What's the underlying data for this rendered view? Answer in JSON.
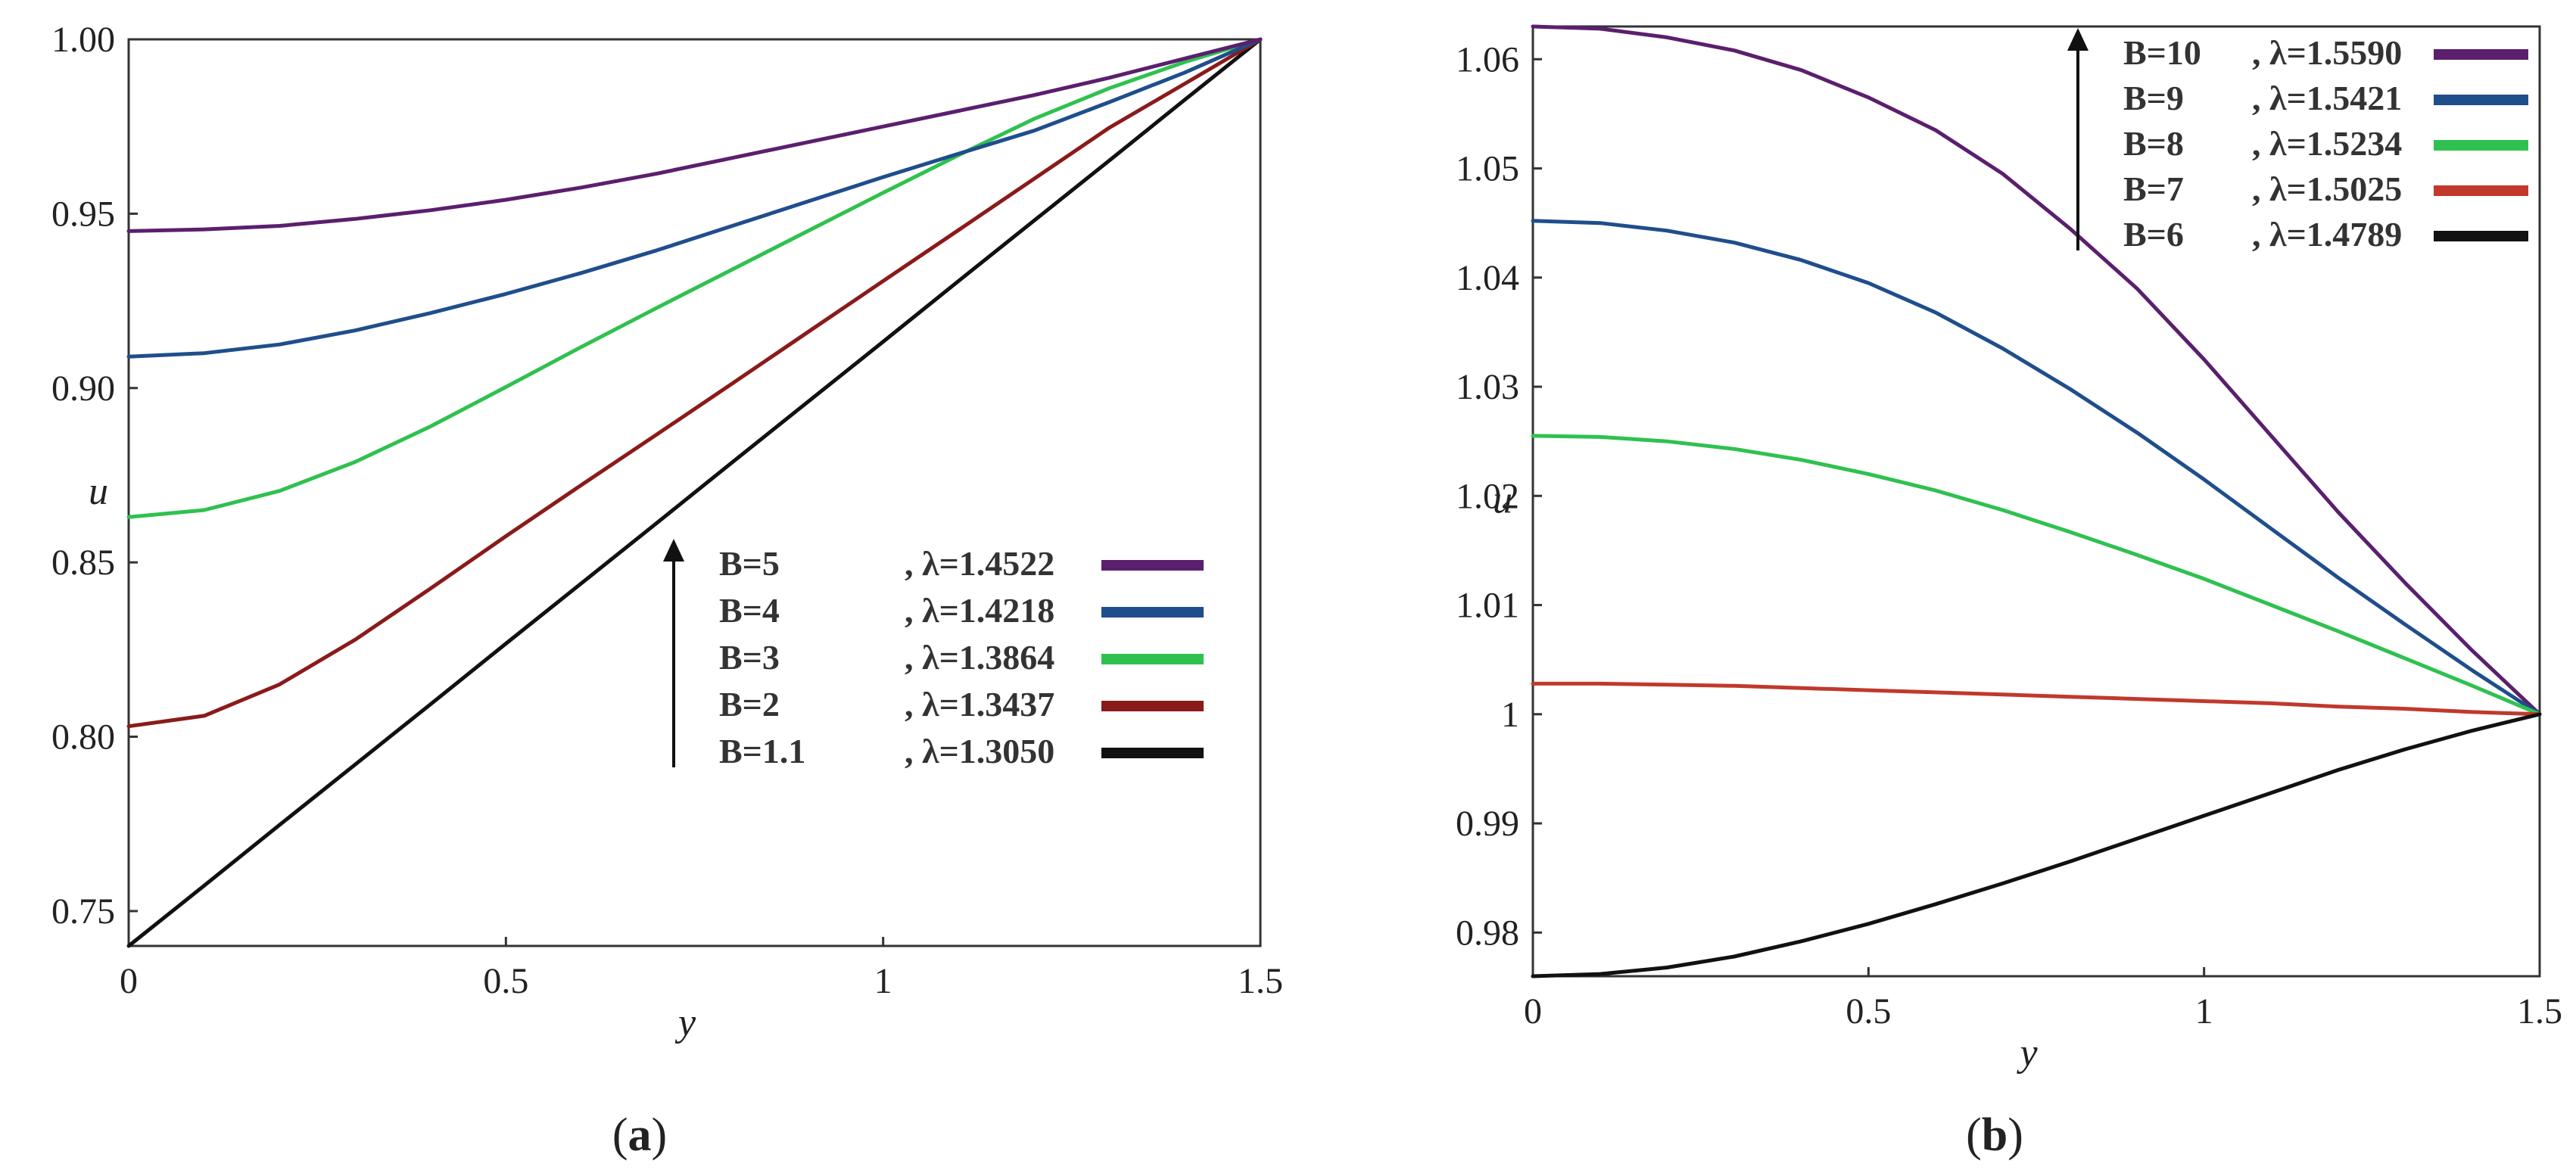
{
  "figure": {
    "panel_labels": [
      {
        "open": "(",
        "letter": "a",
        "close": ")"
      },
      {
        "open": "(",
        "letter": "b",
        "close": ")"
      }
    ]
  },
  "chart_data": [
    {
      "type": "line",
      "xlabel": "y",
      "ylabel": "u",
      "xlim": [
        0,
        1.5
      ],
      "ylim": [
        0.74,
        1.0
      ],
      "xticks": [
        0,
        0.5,
        1,
        1.5
      ],
      "xtick_labels": [
        "0",
        "0.5",
        "1",
        "1.5"
      ],
      "yticks": [
        0.75,
        0.8,
        0.85,
        0.9,
        0.95,
        1.0
      ],
      "ytick_labels": [
        "0.75",
        "0.80",
        "0.85",
        "0.90",
        "0.95",
        "1.00"
      ],
      "legend_position": "bottom-right",
      "legend_arrow": "up",
      "x": [
        0,
        0.1,
        0.2,
        0.3,
        0.4,
        0.5,
        0.6,
        0.7,
        0.8,
        0.9,
        1.0,
        1.1,
        1.2,
        1.3,
        1.4,
        1.5
      ],
      "series": [
        {
          "name": "B=1.1",
          "lambda": ", λ=1.3050",
          "color": "#111111",
          "values": [
            0.74,
            0.7573,
            0.7747,
            0.792,
            0.8093,
            0.8267,
            0.844,
            0.8613,
            0.8787,
            0.896,
            0.9133,
            0.9307,
            0.948,
            0.9653,
            0.9827,
            1.0
          ]
        },
        {
          "name": "B=2",
          "lambda": ", λ=1.3437",
          "color": "#8b1a1a",
          "values": [
            0.803,
            0.806,
            0.815,
            0.8278,
            0.8425,
            0.8575,
            0.8722,
            0.8867,
            0.9013,
            0.916,
            0.9307,
            0.9453,
            0.96,
            0.9747,
            0.9873,
            1.0
          ]
        },
        {
          "name": "B=3",
          "lambda": ", λ=1.3864",
          "color": "#2fc14f",
          "values": [
            0.863,
            0.865,
            0.8705,
            0.8788,
            0.889,
            0.9003,
            0.9118,
            0.923,
            0.934,
            0.945,
            0.956,
            0.9668,
            0.9772,
            0.986,
            0.9935,
            1.0
          ]
        },
        {
          "name": "B=4",
          "lambda": ", λ=1.4218",
          "color": "#1f4e8c",
          "values": [
            0.909,
            0.91,
            0.9125,
            0.9165,
            0.9215,
            0.927,
            0.933,
            0.9395,
            0.9465,
            0.9535,
            0.9605,
            0.9672,
            0.9738,
            0.982,
            0.9905,
            1.0
          ]
        },
        {
          "name": "B=5",
          "lambda": ", λ=1.4522",
          "color": "#5b1f6e",
          "values": [
            0.945,
            0.9455,
            0.9465,
            0.9485,
            0.951,
            0.954,
            0.9575,
            0.9615,
            0.966,
            0.9705,
            0.975,
            0.9795,
            0.984,
            0.989,
            0.9945,
            1.0
          ]
        }
      ]
    },
    {
      "type": "line",
      "xlabel": "y",
      "ylabel": "u",
      "xlim": [
        0,
        1.5
      ],
      "ylim": [
        0.976,
        1.063
      ],
      "xticks": [
        0,
        0.5,
        1,
        1.5
      ],
      "xtick_labels": [
        "0",
        "0.5",
        "1",
        "1.5"
      ],
      "yticks": [
        0.98,
        0.99,
        1.0,
        1.01,
        1.02,
        1.03,
        1.04,
        1.05,
        1.06
      ],
      "ytick_labels": [
        "0.98",
        "0.99",
        "1",
        "1.01",
        "1.02",
        "1.03",
        "1.04",
        "1.05",
        "1.06"
      ],
      "legend_position": "top-right",
      "legend_arrow": "up",
      "x": [
        0,
        0.1,
        0.2,
        0.3,
        0.4,
        0.5,
        0.6,
        0.7,
        0.8,
        0.9,
        1.0,
        1.1,
        1.2,
        1.3,
        1.4,
        1.5
      ],
      "series": [
        {
          "name": "B=10",
          "lambda": ", λ=1.5590",
          "color": "#5b1f6e",
          "values": [
            1.063,
            1.0628,
            1.062,
            1.0608,
            1.059,
            1.0565,
            1.0535,
            1.0495,
            1.0445,
            1.039,
            1.0325,
            1.0255,
            1.0185,
            1.012,
            1.0058,
            1.0
          ]
        },
        {
          "name": "B=9",
          "lambda": ", λ=1.5421",
          "color": "#1f4e8c",
          "values": [
            1.0452,
            1.045,
            1.0443,
            1.0432,
            1.0416,
            1.0395,
            1.0368,
            1.0335,
            1.0298,
            1.0258,
            1.0215,
            1.017,
            1.0125,
            1.0082,
            1.004,
            1.0
          ]
        },
        {
          "name": "B=8",
          "lambda": ", λ=1.5234",
          "color": "#2fc14f",
          "values": [
            1.0255,
            1.0254,
            1.025,
            1.0243,
            1.0233,
            1.022,
            1.0205,
            1.0187,
            1.0167,
            1.0146,
            1.0124,
            1.01,
            1.0076,
            1.0051,
            1.0026,
            1.0
          ]
        },
        {
          "name": "B=7",
          "lambda": ", λ=1.5025",
          "color": "#c0392b",
          "values": [
            1.0028,
            1.0028,
            1.0027,
            1.0026,
            1.0024,
            1.0022,
            1.002,
            1.0018,
            1.0016,
            1.0014,
            1.0012,
            1.001,
            1.0007,
            1.0005,
            1.0002,
            1.0
          ]
        },
        {
          "name": "B=6",
          "lambda": ", λ=1.4789",
          "color": "#111111",
          "values": [
            0.976,
            0.9762,
            0.9768,
            0.9778,
            0.9792,
            0.9808,
            0.9826,
            0.9845,
            0.9865,
            0.9886,
            0.9907,
            0.9928,
            0.9949,
            0.9968,
            0.9985,
            1.0
          ]
        }
      ]
    }
  ]
}
